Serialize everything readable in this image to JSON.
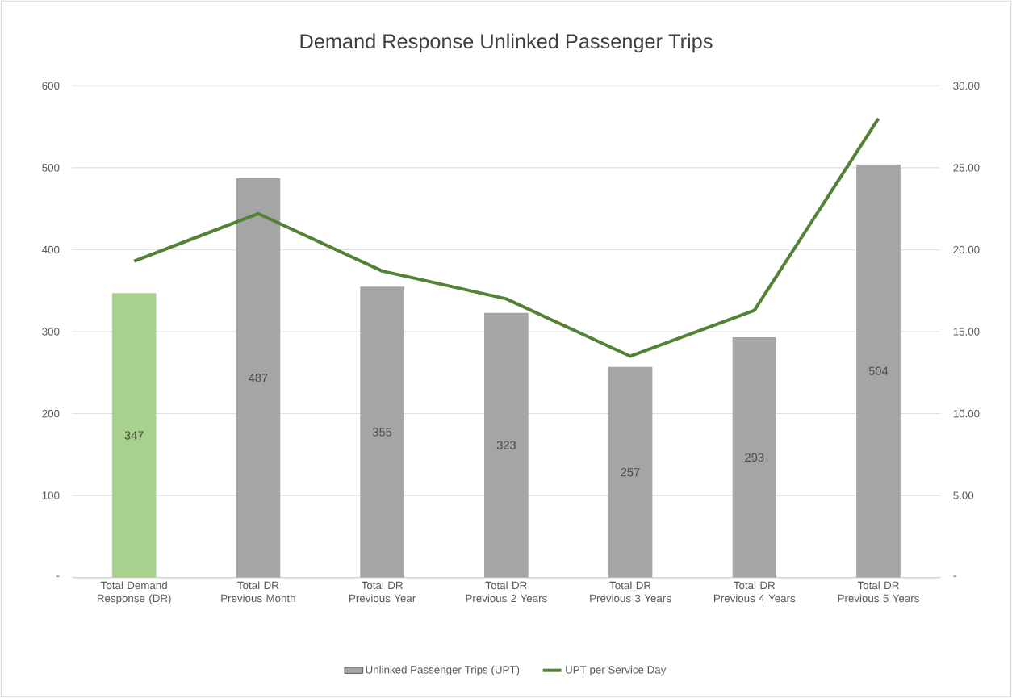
{
  "chart_data": {
    "type": "bar",
    "title": "Demand Response Unlinked Passenger Trips",
    "categories": [
      "Total Demand Response (DR)",
      "Total DR Previous Month",
      "Total DR Previous Year",
      "Total DR Previous 2 Years",
      "Total DR Previous 3 Years",
      "Total DR Previous 4 Years",
      "Total DR Previous 5 Years"
    ],
    "series": [
      {
        "name": "Unlinked Passenger Trips (UPT)",
        "color": "#a5a5a5",
        "colors": [
          "#a9d18e",
          "#a5a5a5",
          "#a5a5a5",
          "#a5a5a5",
          "#a5a5a5",
          "#a5a5a5",
          "#a5a5a5"
        ],
        "values": [
          347,
          487,
          355,
          323,
          257,
          293,
          504
        ],
        "value_labels": [
          "347",
          "487",
          "355",
          "323",
          "257",
          "293",
          "504"
        ]
      },
      {
        "name": "UPT per Service Day",
        "type": "line",
        "axis": "y2",
        "color": "#548235",
        "values": [
          19.3,
          22.2,
          18.7,
          17.0,
          13.5,
          16.3,
          28.0
        ]
      }
    ],
    "ylim": [
      0,
      600
    ],
    "yticks": [
      {
        "value": 0,
        "label": "-"
      },
      100,
      200,
      300,
      400,
      500,
      600
    ],
    "y2lim": [
      0,
      30
    ],
    "y2ticks": [
      {
        "value": 0,
        "label": "-"
      },
      {
        "value": 5,
        "label": "5.00"
      },
      {
        "value": 10,
        "label": "10.00"
      },
      {
        "value": 15,
        "label": "15.00"
      },
      {
        "value": 20,
        "label": "20.00"
      },
      {
        "value": 25,
        "label": "25.00"
      },
      {
        "value": 30,
        "label": "30.00"
      }
    ],
    "grid": "y",
    "legend": "bottom"
  }
}
